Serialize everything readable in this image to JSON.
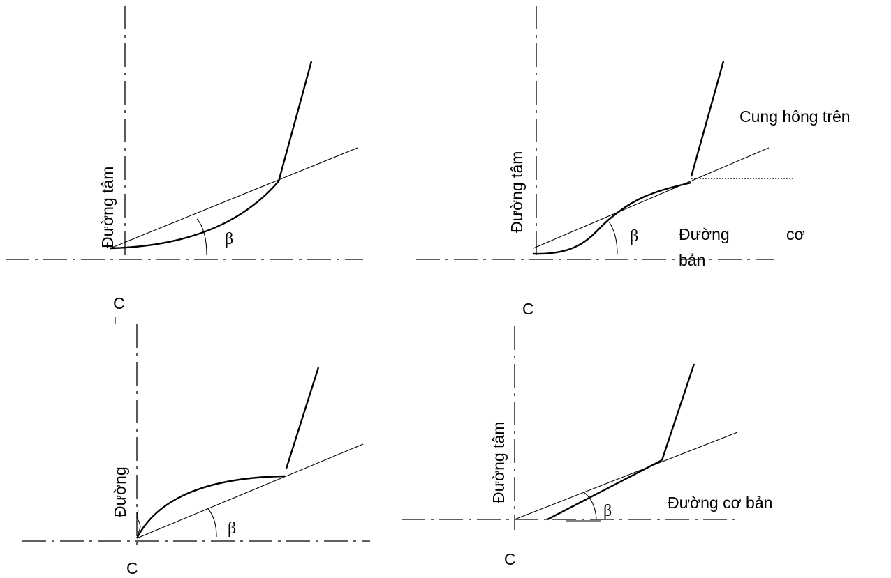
{
  "panels": [
    {
      "center_axis_label": "Đường tâm",
      "center_mark": "C",
      "angle_symbol": "β"
    },
    {
      "center_axis_label": "Đường tâm",
      "center_mark": "C",
      "angle_symbol": "β",
      "upper_flank_label": "Cung hông trên",
      "base_line_label_part1": "Đường",
      "base_line_label_part2": "cơ",
      "base_line_label_part3": "bản"
    },
    {
      "center_axis_label": "Đường",
      "center_mark": "C",
      "angle_symbol": "β"
    },
    {
      "center_axis_label": "Đường tâm",
      "center_mark": "C",
      "angle_symbol": "β",
      "base_line_label": "Đường cơ bản"
    }
  ]
}
